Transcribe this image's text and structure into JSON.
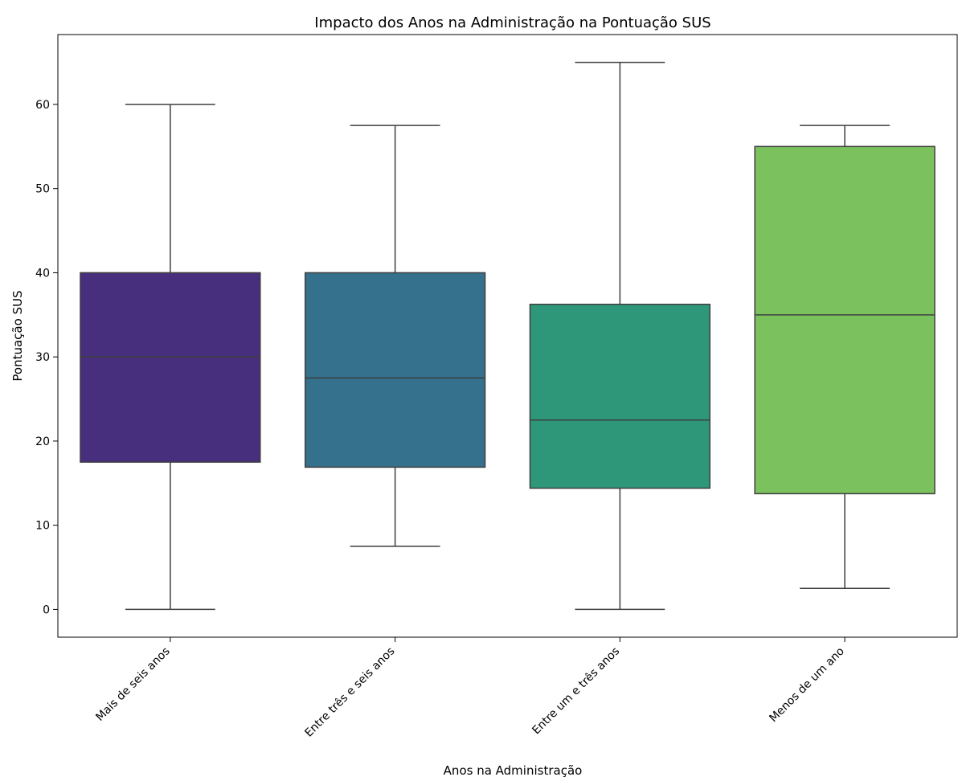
{
  "chart_data": {
    "type": "box",
    "title": "Impacto dos Anos na Administração na Pontuação SUS",
    "xlabel": "Anos na Administração",
    "ylabel": "Pontuação SUS",
    "ylim": [
      -3.3,
      68.3
    ],
    "yticks": [
      0,
      10,
      20,
      30,
      40,
      50,
      60
    ],
    "grid": false,
    "categories": [
      "Mais de seis anos",
      "Entre três e seis anos",
      "Entre um e três anos",
      "Menos de um ano"
    ],
    "colors": [
      "#472f7d",
      "#35718d",
      "#2e9779",
      "#7bc25e"
    ],
    "boxes": [
      {
        "min": 0,
        "q1": 17.5,
        "median": 30,
        "q3": 40,
        "max": 60
      },
      {
        "min": 7.5,
        "q1": 16.9,
        "median": 27.5,
        "q3": 40,
        "max": 57.5
      },
      {
        "min": 0,
        "q1": 14.4,
        "median": 22.5,
        "q3": 36.25,
        "max": 65
      },
      {
        "min": 2.5,
        "q1": 13.75,
        "median": 35,
        "q3": 55,
        "max": 57.5
      }
    ]
  }
}
